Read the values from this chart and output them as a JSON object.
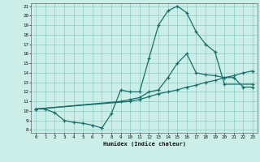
{
  "xlabel": "Humidex (Indice chaleur)",
  "bg_color": "#cceee8",
  "grid_color": "#88ccc4",
  "line_color": "#1a6e6a",
  "xlim": [
    -0.5,
    23.5
  ],
  "ylim": [
    7.7,
    21.3
  ],
  "xticks": [
    0,
    1,
    2,
    3,
    4,
    5,
    6,
    7,
    8,
    9,
    10,
    11,
    12,
    13,
    14,
    15,
    16,
    17,
    18,
    19,
    20,
    21,
    22,
    23
  ],
  "yticks": [
    8,
    9,
    10,
    11,
    12,
    13,
    14,
    15,
    16,
    17,
    18,
    19,
    20,
    21
  ],
  "line1_x": [
    0,
    1,
    2,
    3,
    4,
    5,
    6,
    7,
    8,
    9,
    10,
    11,
    12,
    13,
    14,
    15,
    16,
    17,
    18,
    19,
    20,
    23
  ],
  "line1_y": [
    10.2,
    10.2,
    9.8,
    9.0,
    8.8,
    8.7,
    8.5,
    8.2,
    9.7,
    12.2,
    12.0,
    12.0,
    15.5,
    19.0,
    20.5,
    21.0,
    20.3,
    18.3,
    17.0,
    16.2,
    12.8,
    12.8
  ],
  "line2_x": [
    0,
    10,
    11,
    12,
    13,
    14,
    15,
    16,
    17,
    18,
    19,
    20,
    21,
    22,
    23
  ],
  "line2_y": [
    10.2,
    11.0,
    11.2,
    11.5,
    11.8,
    12.0,
    12.2,
    12.5,
    12.7,
    13.0,
    13.2,
    13.5,
    13.7,
    14.0,
    14.2
  ],
  "line3_x": [
    0,
    9,
    10,
    11,
    12,
    13,
    14,
    15,
    16,
    17,
    18,
    19,
    20,
    21,
    22,
    23
  ],
  "line3_y": [
    10.2,
    11.0,
    11.2,
    11.4,
    12.0,
    12.2,
    13.5,
    15.0,
    16.0,
    14.0,
    13.8,
    13.7,
    13.5,
    13.5,
    12.5,
    12.5
  ]
}
